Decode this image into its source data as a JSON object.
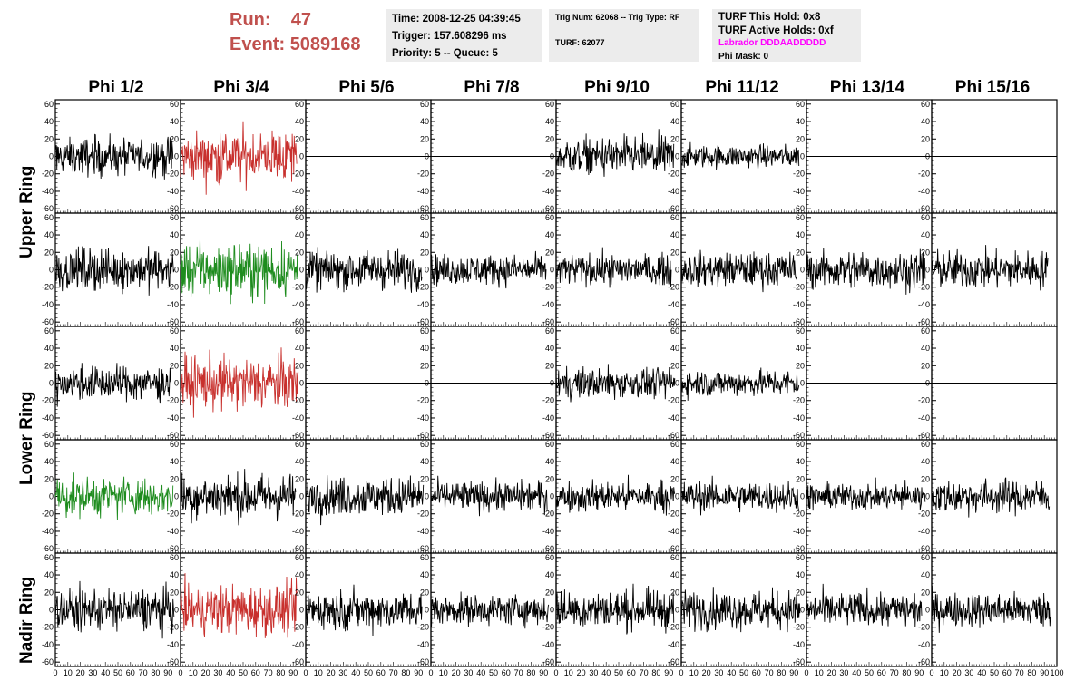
{
  "header": {
    "run_label": "Run:",
    "run_value": "47",
    "event_label": "Event:",
    "event_value": "5089168"
  },
  "info_time": {
    "time": "Time: 2008-12-25 04:39:45",
    "trigger": "Trigger: 157.608296 ms",
    "priority": "Priority: 5 -- Queue: 5"
  },
  "info_trig": {
    "trig": "Trig Num: 62068 -- Trig Type: RF",
    "turf": "TURF: 62077"
  },
  "info_turf": {
    "hold": "TURF This Hold: 0x8",
    "active": "TURF Active Holds: 0xf",
    "labrador": "Labrador DDDAADDDDD",
    "phimask": "Phi Mask: 0"
  },
  "colors": {
    "normal_trace": "#000000",
    "triggered_trace": "#c8302d",
    "green_trace": "#1e8c1e",
    "run_text": "#c0504d",
    "labrador_text": "#ff00ff"
  },
  "chart_data": {
    "type": "line",
    "columns": [
      "Phi 1/2",
      "Phi 3/4",
      "Phi 5/6",
      "Phi 7/8",
      "Phi 9/10",
      "Phi 11/12",
      "Phi 13/14",
      "Phi 15/16"
    ],
    "rows": [
      "Upper Ring",
      "Lower Ring",
      "Nadir Ring"
    ],
    "ylim": [
      -65,
      65
    ],
    "xlim": [
      0,
      100
    ],
    "y_ticks": [
      60,
      40,
      20,
      0,
      -20,
      -40,
      -60
    ],
    "x_tick_labels": [
      "0",
      "10",
      "20",
      "30",
      "40",
      "50",
      "60",
      "70",
      "80",
      "90",
      "100"
    ],
    "panel_rows": [
      {
        "name": "Upper Ring A",
        "colors": [
          "black",
          "red",
          "flat",
          "flat",
          "black",
          "black",
          "flat",
          "flat"
        ],
        "amplitude": [
          20,
          28,
          0,
          0,
          20,
          12,
          0,
          0
        ]
      },
      {
        "name": "Upper Ring B",
        "colors": [
          "black",
          "green",
          "black",
          "black",
          "black",
          "black",
          "black",
          "black"
        ],
        "amplitude": [
          22,
          28,
          20,
          16,
          16,
          18,
          20,
          20
        ]
      },
      {
        "name": "Lower Ring A",
        "colors": [
          "black",
          "red",
          "flat",
          "flat",
          "black",
          "black",
          "flat",
          "flat"
        ],
        "amplitude": [
          18,
          28,
          0,
          0,
          16,
          14,
          0,
          0
        ]
      },
      {
        "name": "Lower Ring B",
        "colors": [
          "green",
          "black",
          "black",
          "black",
          "black",
          "black",
          "black",
          "black"
        ],
        "amplitude": [
          20,
          24,
          20,
          16,
          16,
          16,
          14,
          18
        ]
      },
      {
        "name": "Nadir Ring",
        "colors": [
          "black",
          "red",
          "black",
          "black",
          "black",
          "black",
          "black",
          "black"
        ],
        "amplitude": [
          22,
          26,
          20,
          16,
          20,
          20,
          18,
          18
        ]
      }
    ]
  }
}
